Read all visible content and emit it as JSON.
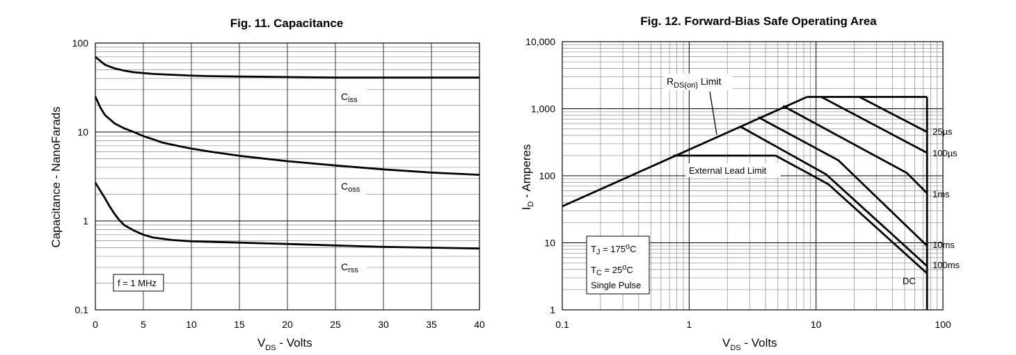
{
  "chart_data": [
    {
      "type": "line",
      "title": "Fig. 11. Capacitance",
      "xlabel": {
        "main": "V",
        "sub": "DS",
        "rest": " - Volts"
      },
      "ylabel": "Capacitance - NanoFarads",
      "x_scale": "linear",
      "y_scale": "log",
      "xlim": [
        0,
        40
      ],
      "ylim": [
        0.1,
        100
      ],
      "grid": true,
      "x_ticks": [
        "0",
        "5",
        "10",
        "15",
        "20",
        "25",
        "30",
        "35",
        "40"
      ],
      "y_ticks": [
        "0.1",
        "1",
        "10",
        "100"
      ],
      "series": [
        {
          "name": "Ciss",
          "label_main": "C",
          "label_sub": "iss",
          "x": [
            0,
            1,
            2,
            3,
            4,
            5,
            6,
            8,
            10,
            12,
            15,
            20,
            25,
            30,
            35,
            40
          ],
          "y": [
            70,
            57,
            52,
            49,
            47,
            46,
            45,
            44,
            43,
            42.5,
            42,
            41.5,
            41,
            41,
            41,
            41
          ]
        },
        {
          "name": "Coss",
          "label_main": "C",
          "label_sub": "oss",
          "x": [
            0,
            0.5,
            1,
            2,
            3,
            4,
            5,
            6,
            7,
            8,
            10,
            12,
            15,
            20,
            25,
            30,
            35,
            40
          ],
          "y": [
            25,
            19,
            15.5,
            12.5,
            11,
            10,
            9,
            8.3,
            7.6,
            7.2,
            6.5,
            6,
            5.4,
            4.7,
            4.2,
            3.8,
            3.5,
            3.3
          ]
        },
        {
          "name": "Crss",
          "label_main": "C",
          "label_sub": "rss",
          "x": [
            0,
            0.5,
            1,
            1.5,
            2,
            2.5,
            3,
            4,
            5,
            6,
            8,
            10,
            15,
            20,
            25,
            30,
            35,
            40
          ],
          "y": [
            2.7,
            2.2,
            1.8,
            1.45,
            1.2,
            1.02,
            0.9,
            0.78,
            0.7,
            0.65,
            0.61,
            0.59,
            0.57,
            0.55,
            0.53,
            0.51,
            0.5,
            0.49
          ]
        }
      ],
      "annotations": [
        "f = 1 MHz"
      ]
    },
    {
      "type": "line",
      "title": "Fig. 12. Forward-Bias Safe Operating Area",
      "xlabel": {
        "main": "V",
        "sub": "DS",
        "rest": " - Volts"
      },
      "ylabel": {
        "main": "I",
        "sub": "D",
        "rest": " - Amperes"
      },
      "x_scale": "log",
      "y_scale": "log",
      "xlim": [
        0.1,
        100
      ],
      "ylim": [
        1,
        10000
      ],
      "grid": true,
      "x_ticks": [
        "0.1",
        "1",
        "10",
        "100"
      ],
      "y_ticks": [
        "1",
        "10",
        "100",
        "1,000",
        "10,000"
      ],
      "series": [
        {
          "name": "RDS(on) Limit",
          "x": [
            0.1,
            8.5
          ],
          "y": [
            35,
            1500
          ]
        },
        {
          "name": "External Lead Limit",
          "x": [
            0.75,
            4.8
          ],
          "y": [
            200,
            200
          ]
        },
        {
          "name": "25µs",
          "x": [
            22,
            75
          ],
          "y": [
            1500,
            450
          ]
        },
        {
          "name": "100µs",
          "x": [
            11,
            75
          ],
          "y": [
            1500,
            220
          ]
        },
        {
          "name": "1ms",
          "x": [
            5.5,
            52,
            75
          ],
          "y": [
            1100,
            110,
            55
          ]
        },
        {
          "name": "10ms",
          "x": [
            3.5,
            15,
            75
          ],
          "y": [
            750,
            170,
            9
          ]
        },
        {
          "name": "100ms",
          "x": [
            2.5,
            12,
            75
          ],
          "y": [
            550,
            105,
            4.5
          ]
        },
        {
          "name": "DC",
          "x": [
            4.8,
            12.5,
            75
          ],
          "y": [
            200,
            75,
            3.5
          ]
        },
        {
          "name": "Current limit",
          "x": [
            8.5,
            75
          ],
          "y": [
            1500,
            1500
          ]
        },
        {
          "name": "Voltage limit",
          "x": [
            75,
            75
          ],
          "y": [
            1500,
            1
          ]
        }
      ],
      "labels": {
        "rds_main": "R",
        "rds_sub": "DS(on)",
        "rds_rest": " Limit",
        "ext_lead": "External Lead Limit",
        "t25us": "25µs",
        "t100us": "100µs",
        "t1ms": "1ms",
        "t10ms": "10ms",
        "t100ms": "100ms",
        "dc": "DC"
      },
      "conditions": {
        "tj_main": "T",
        "tj_sub": "J",
        "tj_rest": " = 175",
        "tj_unit": "C",
        "tc_main": "T",
        "tc_sub": "C",
        "tc_rest": " = 25",
        "tc_unit": "C",
        "deg": "o",
        "pulse": "Single Pulse"
      }
    }
  ]
}
